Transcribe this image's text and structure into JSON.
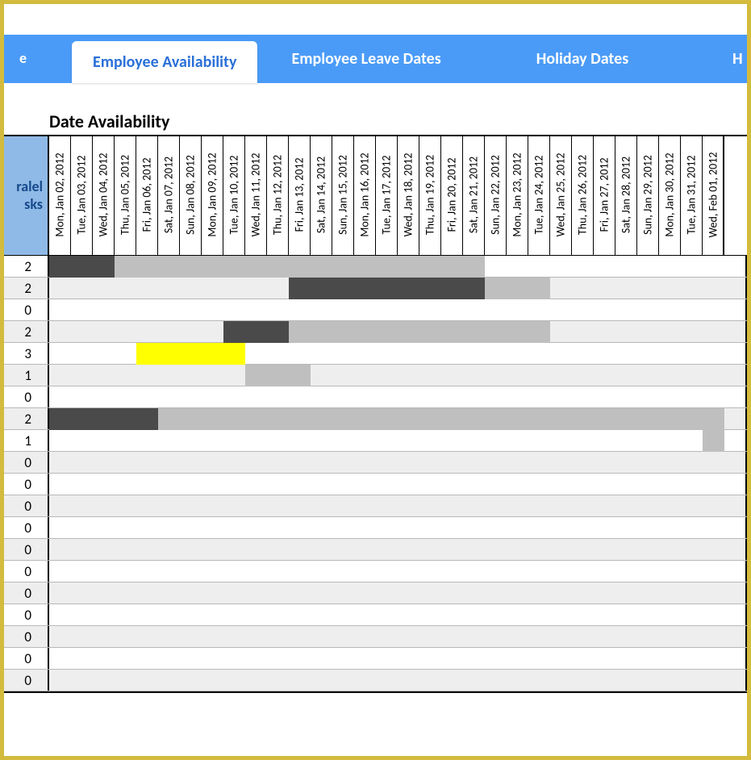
{
  "colors": {
    "frame_border": "#d3bb3d",
    "tabbar_bg": "#4a9bf8",
    "tab_active_bg": "#ffffff",
    "tab_active_fg": "#2a70d8",
    "tab_inactive_fg": "#ffffff",
    "header_cell_bg": "#8fb9e6",
    "header_cell_fg": "#174a8c",
    "row_alt_bg": "#eeeeee",
    "grid_line": "#b8b8b8",
    "cell_dark": "#4a4a4a",
    "cell_light": "#bfbfbf",
    "cell_yellow": "#ffff00"
  },
  "tabs": {
    "partial_left": "e",
    "active": "Employee Availability",
    "items": [
      "Employee Leave Dates",
      "Holiday Dates"
    ],
    "partial_right": "H"
  },
  "section_title": "Date Availability",
  "first_column_header": {
    "line1": "ralel",
    "line2": "sks"
  },
  "dates": [
    "Mon, Jan 02, 2012",
    "Tue, Jan 03, 2012",
    "Wed, Jan 04, 2012",
    "Thu, Jan 05, 2012",
    "Fri, Jan 06, 2012",
    "Sat, Jan 07, 2012",
    "Sun, Jan 08, 2012",
    "Mon, Jan 09, 2012",
    "Tue, Jan 10, 2012",
    "Wed, Jan 11, 2012",
    "Thu, Jan 12, 2012",
    "Fri, Jan 13, 2012",
    "Sat, Jan 14, 2012",
    "Sun, Jan 15, 2012",
    "Mon, Jan 16, 2012",
    "Tue, Jan 17, 2012",
    "Wed, Jan 18, 2012",
    "Thu, Jan 19, 2012",
    "Fri, Jan 20, 2012",
    "Sat, Jan 21, 2012",
    "Sun, Jan 22, 2012",
    "Mon, Jan 23, 2012",
    "Tue, Jan 24, 2012",
    "Wed, Jan 25, 2012",
    "Thu, Jan 26, 2012",
    "Fri, Jan 27, 2012",
    "Sat, Jan 28, 2012",
    "Sun, Jan 29, 2012",
    "Mon, Jan 30, 2012",
    "Tue, Jan 31, 2012",
    "Wed, Feb 01, 2012"
  ],
  "rows": [
    {
      "tasks": 2,
      "cells": [
        "dark",
        "dark",
        "dark",
        "light",
        "light",
        "light",
        "light",
        "light",
        "light",
        "light",
        "light",
        "light",
        "light",
        "light",
        "light",
        "light",
        "light",
        "light",
        "light",
        "light",
        "",
        "",
        "",
        "",
        "",
        "",
        "",
        "",
        "",
        "",
        ""
      ]
    },
    {
      "tasks": 2,
      "cells": [
        "",
        "",
        "",
        "",
        "",
        "",
        "",
        "",
        "",
        "",
        "",
        "dark",
        "dark",
        "dark",
        "dark",
        "dark",
        "dark",
        "dark",
        "dark",
        "dark",
        "light",
        "light",
        "light",
        "",
        "",
        "",
        "",
        "",
        "",
        "",
        ""
      ]
    },
    {
      "tasks": 0,
      "cells": [
        "",
        "",
        "",
        "",
        "",
        "",
        "",
        "",
        "",
        "",
        "",
        "",
        "",
        "",
        "",
        "",
        "",
        "",
        "",
        "",
        "",
        "",
        "",
        "",
        "",
        "",
        "",
        "",
        "",
        "",
        ""
      ]
    },
    {
      "tasks": 2,
      "cells": [
        "",
        "",
        "",
        "",
        "",
        "",
        "",
        "",
        "dark",
        "dark",
        "dark",
        "light",
        "light",
        "light",
        "light",
        "light",
        "light",
        "light",
        "light",
        "light",
        "light",
        "light",
        "light",
        "",
        "",
        "",
        "",
        "",
        "",
        "",
        ""
      ]
    },
    {
      "tasks": 3,
      "cells": [
        "",
        "",
        "",
        "",
        "yellow",
        "yellow",
        "yellow",
        "yellow",
        "yellow",
        "",
        "",
        "",
        "",
        "",
        "",
        "",
        "",
        "",
        "",
        "",
        "",
        "",
        "",
        "",
        "",
        "",
        "",
        "",
        "",
        "",
        ""
      ]
    },
    {
      "tasks": 1,
      "cells": [
        "",
        "",
        "",
        "",
        "",
        "",
        "",
        "",
        "",
        "light",
        "light",
        "light",
        "",
        "",
        "",
        "",
        "",
        "",
        "",
        "",
        "",
        "",
        "",
        "",
        "",
        "",
        "",
        "",
        "",
        "",
        ""
      ]
    },
    {
      "tasks": 0,
      "cells": [
        "",
        "",
        "",
        "",
        "",
        "",
        "",
        "",
        "",
        "",
        "",
        "",
        "",
        "",
        "",
        "",
        "",
        "",
        "",
        "",
        "",
        "",
        "",
        "",
        "",
        "",
        "",
        "",
        "",
        "",
        ""
      ]
    },
    {
      "tasks": 2,
      "cells": [
        "dark",
        "dark",
        "dark",
        "dark",
        "dark",
        "light",
        "light",
        "light",
        "light",
        "light",
        "light",
        "light",
        "light",
        "light",
        "light",
        "light",
        "light",
        "light",
        "light",
        "light",
        "light",
        "light",
        "light",
        "light",
        "light",
        "light",
        "light",
        "light",
        "light",
        "light",
        "light"
      ]
    },
    {
      "tasks": 1,
      "cells": [
        "",
        "",
        "",
        "",
        "",
        "",
        "",
        "",
        "",
        "",
        "",
        "",
        "",
        "",
        "",
        "",
        "",
        "",
        "",
        "",
        "",
        "",
        "",
        "",
        "",
        "",
        "",
        "",
        "",
        "",
        "light"
      ]
    },
    {
      "tasks": 0,
      "cells": [
        "",
        "",
        "",
        "",
        "",
        "",
        "",
        "",
        "",
        "",
        "",
        "",
        "",
        "",
        "",
        "",
        "",
        "",
        "",
        "",
        "",
        "",
        "",
        "",
        "",
        "",
        "",
        "",
        "",
        "",
        ""
      ]
    },
    {
      "tasks": 0,
      "cells": [
        "",
        "",
        "",
        "",
        "",
        "",
        "",
        "",
        "",
        "",
        "",
        "",
        "",
        "",
        "",
        "",
        "",
        "",
        "",
        "",
        "",
        "",
        "",
        "",
        "",
        "",
        "",
        "",
        "",
        "",
        ""
      ]
    },
    {
      "tasks": 0,
      "cells": [
        "",
        "",
        "",
        "",
        "",
        "",
        "",
        "",
        "",
        "",
        "",
        "",
        "",
        "",
        "",
        "",
        "",
        "",
        "",
        "",
        "",
        "",
        "",
        "",
        "",
        "",
        "",
        "",
        "",
        "",
        ""
      ]
    },
    {
      "tasks": 0,
      "cells": [
        "",
        "",
        "",
        "",
        "",
        "",
        "",
        "",
        "",
        "",
        "",
        "",
        "",
        "",
        "",
        "",
        "",
        "",
        "",
        "",
        "",
        "",
        "",
        "",
        "",
        "",
        "",
        "",
        "",
        "",
        ""
      ]
    },
    {
      "tasks": 0,
      "cells": [
        "",
        "",
        "",
        "",
        "",
        "",
        "",
        "",
        "",
        "",
        "",
        "",
        "",
        "",
        "",
        "",
        "",
        "",
        "",
        "",
        "",
        "",
        "",
        "",
        "",
        "",
        "",
        "",
        "",
        "",
        ""
      ]
    },
    {
      "tasks": 0,
      "cells": [
        "",
        "",
        "",
        "",
        "",
        "",
        "",
        "",
        "",
        "",
        "",
        "",
        "",
        "",
        "",
        "",
        "",
        "",
        "",
        "",
        "",
        "",
        "",
        "",
        "",
        "",
        "",
        "",
        "",
        "",
        ""
      ]
    },
    {
      "tasks": 0,
      "cells": [
        "",
        "",
        "",
        "",
        "",
        "",
        "",
        "",
        "",
        "",
        "",
        "",
        "",
        "",
        "",
        "",
        "",
        "",
        "",
        "",
        "",
        "",
        "",
        "",
        "",
        "",
        "",
        "",
        "",
        "",
        ""
      ]
    },
    {
      "tasks": 0,
      "cells": [
        "",
        "",
        "",
        "",
        "",
        "",
        "",
        "",
        "",
        "",
        "",
        "",
        "",
        "",
        "",
        "",
        "",
        "",
        "",
        "",
        "",
        "",
        "",
        "",
        "",
        "",
        "",
        "",
        "",
        "",
        ""
      ]
    },
    {
      "tasks": 0,
      "cells": [
        "",
        "",
        "",
        "",
        "",
        "",
        "",
        "",
        "",
        "",
        "",
        "",
        "",
        "",
        "",
        "",
        "",
        "",
        "",
        "",
        "",
        "",
        "",
        "",
        "",
        "",
        "",
        "",
        "",
        "",
        ""
      ]
    },
    {
      "tasks": 0,
      "cells": [
        "",
        "",
        "",
        "",
        "",
        "",
        "",
        "",
        "",
        "",
        "",
        "",
        "",
        "",
        "",
        "",
        "",
        "",
        "",
        "",
        "",
        "",
        "",
        "",
        "",
        "",
        "",
        "",
        "",
        "",
        ""
      ]
    },
    {
      "tasks": 0,
      "cells": [
        "",
        "",
        "",
        "",
        "",
        "",
        "",
        "",
        "",
        "",
        "",
        "",
        "",
        "",
        "",
        "",
        "",
        "",
        "",
        "",
        "",
        "",
        "",
        "",
        "",
        "",
        "",
        "",
        "",
        "",
        ""
      ]
    }
  ]
}
